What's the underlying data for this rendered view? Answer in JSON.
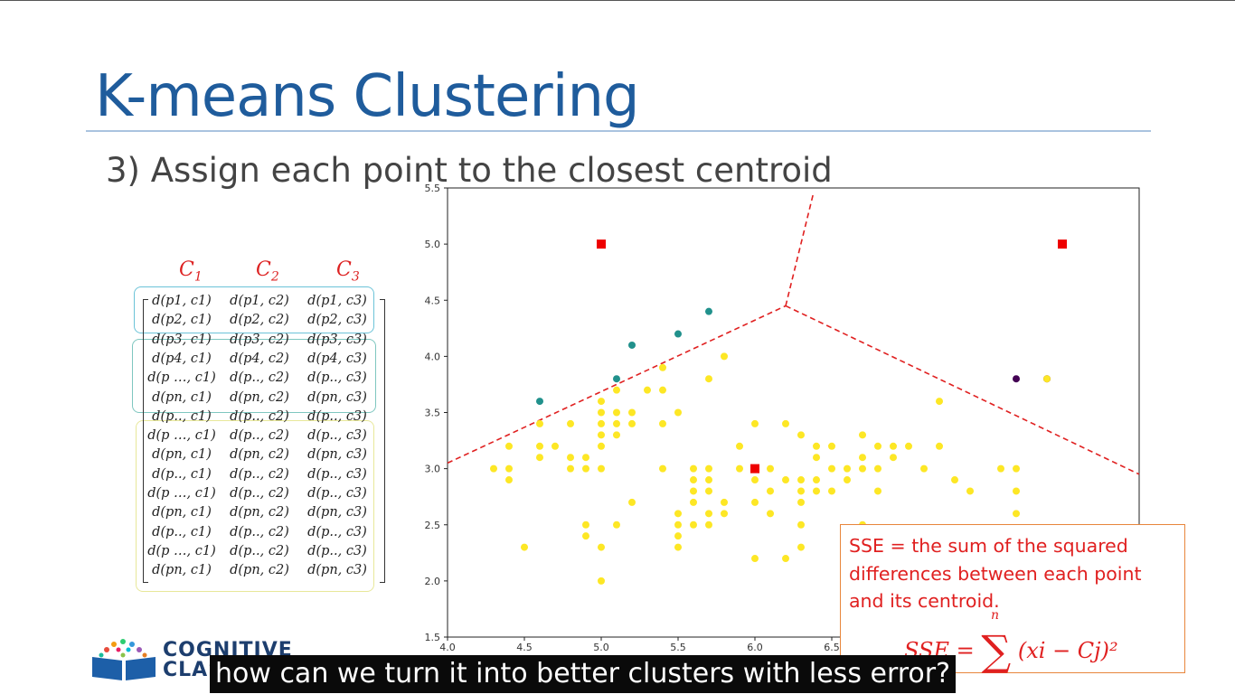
{
  "slide": {
    "title": "K-means Clustering",
    "subtitle": "3) Assign each point to the closest centroid"
  },
  "matrix": {
    "headers": [
      "C",
      "C",
      "C"
    ],
    "header_subscripts": [
      "1",
      "2",
      "3"
    ],
    "rows": [
      [
        "d(p1, c1)",
        "d(p1, c2)",
        "d(p1, c3)"
      ],
      [
        "d(p2, c1)",
        "d(p2, c2)",
        "d(p2, c3)"
      ],
      [
        "d(p3, c1)",
        "d(p3, c2)",
        "d(p3, c3)"
      ],
      [
        "d(p4, c1)",
        "d(p4, c2)",
        "d(p4, c3)"
      ],
      [
        "d(p …, c1)",
        "d(p.., c2)",
        "d(p.., c3)"
      ],
      [
        "d(pn, c1)",
        "d(pn, c2)",
        "d(pn, c3)"
      ],
      [
        "d(p.., c1)",
        "d(p.., c2)",
        "d(p.., c3)"
      ],
      [
        "d(p …, c1)",
        "d(p.., c2)",
        "d(p.., c3)"
      ],
      [
        "d(pn, c1)",
        "d(pn, c2)",
        "d(pn, c3)"
      ],
      [
        "d(p.., c1)",
        "d(p.., c2)",
        "d(p.., c3)"
      ],
      [
        "d(p …, c1)",
        "d(p.., c2)",
        "d(p.., c3)"
      ],
      [
        "d(pn, c1)",
        "d(pn, c2)",
        "d(pn, c3)"
      ],
      [
        "d(p.., c1)",
        "d(p.., c2)",
        "d(p.., c3)"
      ],
      [
        "d(p …, c1)",
        "d(p.., c2)",
        "d(p.., c3)"
      ],
      [
        "d(pn, c1)",
        "d(pn, c2)",
        "d(pn, c3)"
      ]
    ]
  },
  "chart_data": {
    "type": "scatter",
    "xlim": [
      4.0,
      8.5
    ],
    "ylim": [
      1.5,
      5.5
    ],
    "x_ticks": [
      "4.0",
      "4.5",
      "5.0",
      "5.5",
      "6.0",
      "6.5"
    ],
    "y_ticks": [
      "1.5",
      "2.0",
      "2.5",
      "3.0",
      "3.5",
      "4.0",
      "4.5",
      "5.0",
      "5.5"
    ],
    "colors": {
      "yellow": "#fde725",
      "teal": "#21918c",
      "purple": "#440154",
      "centroid": "#ee0000",
      "boundary": "#e02020"
    },
    "centroids": [
      [
        5.0,
        5.0
      ],
      [
        8.0,
        5.0
      ],
      [
        6.0,
        3.0
      ]
    ],
    "series": [
      {
        "color": "teal",
        "points": [
          [
            4.6,
            3.6
          ],
          [
            5.1,
            3.8
          ],
          [
            5.2,
            4.1
          ],
          [
            5.5,
            4.2
          ],
          [
            5.7,
            4.4
          ]
        ]
      },
      {
        "color": "purple",
        "points": [
          [
            7.7,
            3.8
          ],
          [
            7.9,
            3.8
          ]
        ]
      },
      {
        "color": "yellow",
        "points": [
          [
            4.3,
            3.0
          ],
          [
            4.4,
            2.9
          ],
          [
            4.4,
            3.0
          ],
          [
            4.4,
            3.2
          ],
          [
            4.5,
            2.3
          ],
          [
            4.6,
            3.1
          ],
          [
            4.6,
            3.2
          ],
          [
            4.6,
            3.4
          ],
          [
            4.7,
            3.2
          ],
          [
            4.8,
            3.0
          ],
          [
            4.8,
            3.1
          ],
          [
            4.8,
            3.4
          ],
          [
            4.9,
            2.4
          ],
          [
            4.9,
            2.5
          ],
          [
            4.9,
            3.0
          ],
          [
            4.9,
            3.1
          ],
          [
            5.0,
            2.0
          ],
          [
            5.0,
            2.3
          ],
          [
            5.0,
            3.0
          ],
          [
            5.0,
            3.2
          ],
          [
            5.0,
            3.3
          ],
          [
            5.0,
            3.4
          ],
          [
            5.0,
            3.5
          ],
          [
            5.0,
            3.6
          ],
          [
            5.1,
            2.5
          ],
          [
            5.1,
            3.3
          ],
          [
            5.1,
            3.4
          ],
          [
            5.1,
            3.5
          ],
          [
            5.1,
            3.7
          ],
          [
            5.2,
            2.7
          ],
          [
            5.2,
            3.4
          ],
          [
            5.2,
            3.5
          ],
          [
            5.3,
            3.7
          ],
          [
            5.4,
            3.4
          ],
          [
            5.4,
            3.7
          ],
          [
            5.4,
            3.9
          ],
          [
            5.4,
            3.0
          ],
          [
            5.5,
            2.3
          ],
          [
            5.5,
            2.4
          ],
          [
            5.5,
            2.5
          ],
          [
            5.5,
            2.6
          ],
          [
            5.5,
            3.5
          ],
          [
            5.6,
            2.5
          ],
          [
            5.6,
            2.7
          ],
          [
            5.6,
            2.8
          ],
          [
            5.6,
            2.9
          ],
          [
            5.6,
            3.0
          ],
          [
            5.7,
            2.5
          ],
          [
            5.7,
            2.6
          ],
          [
            5.7,
            2.8
          ],
          [
            5.7,
            2.9
          ],
          [
            5.7,
            3.0
          ],
          [
            5.7,
            3.8
          ],
          [
            5.8,
            2.6
          ],
          [
            5.8,
            2.7
          ],
          [
            5.8,
            4.0
          ],
          [
            5.9,
            3.0
          ],
          [
            5.9,
            3.2
          ],
          [
            6.0,
            2.2
          ],
          [
            6.0,
            2.7
          ],
          [
            6.0,
            2.9
          ],
          [
            6.0,
            3.4
          ],
          [
            6.1,
            2.6
          ],
          [
            6.1,
            2.8
          ],
          [
            6.1,
            3.0
          ],
          [
            6.2,
            2.2
          ],
          [
            6.2,
            2.9
          ],
          [
            6.2,
            3.4
          ],
          [
            6.3,
            2.3
          ],
          [
            6.3,
            2.5
          ],
          [
            6.3,
            2.7
          ],
          [
            6.3,
            2.8
          ],
          [
            6.3,
            2.9
          ],
          [
            6.3,
            3.3
          ],
          [
            6.4,
            2.8
          ],
          [
            6.4,
            2.9
          ],
          [
            6.4,
            3.1
          ],
          [
            6.4,
            3.2
          ],
          [
            6.5,
            2.8
          ],
          [
            6.5,
            3.0
          ],
          [
            6.5,
            3.2
          ],
          [
            6.6,
            2.9
          ],
          [
            6.6,
            3.0
          ],
          [
            6.7,
            2.5
          ],
          [
            6.7,
            3.0
          ],
          [
            6.7,
            3.1
          ],
          [
            6.7,
            3.3
          ],
          [
            6.8,
            2.8
          ],
          [
            6.8,
            3.0
          ],
          [
            6.8,
            3.2
          ],
          [
            6.9,
            3.1
          ],
          [
            6.9,
            3.2
          ],
          [
            7.0,
            3.2
          ],
          [
            7.1,
            3.0
          ],
          [
            7.2,
            3.2
          ],
          [
            7.2,
            3.6
          ],
          [
            7.3,
            2.9
          ],
          [
            7.6,
            3.0
          ],
          [
            7.7,
            2.8
          ],
          [
            7.7,
            2.6
          ],
          [
            7.7,
            3.0
          ],
          [
            7.4,
            2.8
          ],
          [
            7.9,
            3.8
          ]
        ]
      }
    ],
    "boundaries": [
      [
        [
          4.0,
          3.05
        ],
        [
          6.2,
          4.45
        ]
      ],
      [
        [
          6.2,
          4.45
        ],
        [
          6.38,
          5.45
        ]
      ],
      [
        [
          6.2,
          4.45
        ],
        [
          8.5,
          2.95
        ]
      ]
    ]
  },
  "sse_box": {
    "text": "SSE = the sum of the squared differences between each point and its centroid.",
    "formula_lhs": "SSE",
    "formula_eq": "=",
    "formula_sum": "∑",
    "formula_upper": "n",
    "formula_rhs": "(xi − Cj)²"
  },
  "logo": {
    "line1": "COGNITIVE",
    "line2": "CLASS"
  },
  "caption": {
    "text": "how can we turn it into better clusters with less error?"
  }
}
